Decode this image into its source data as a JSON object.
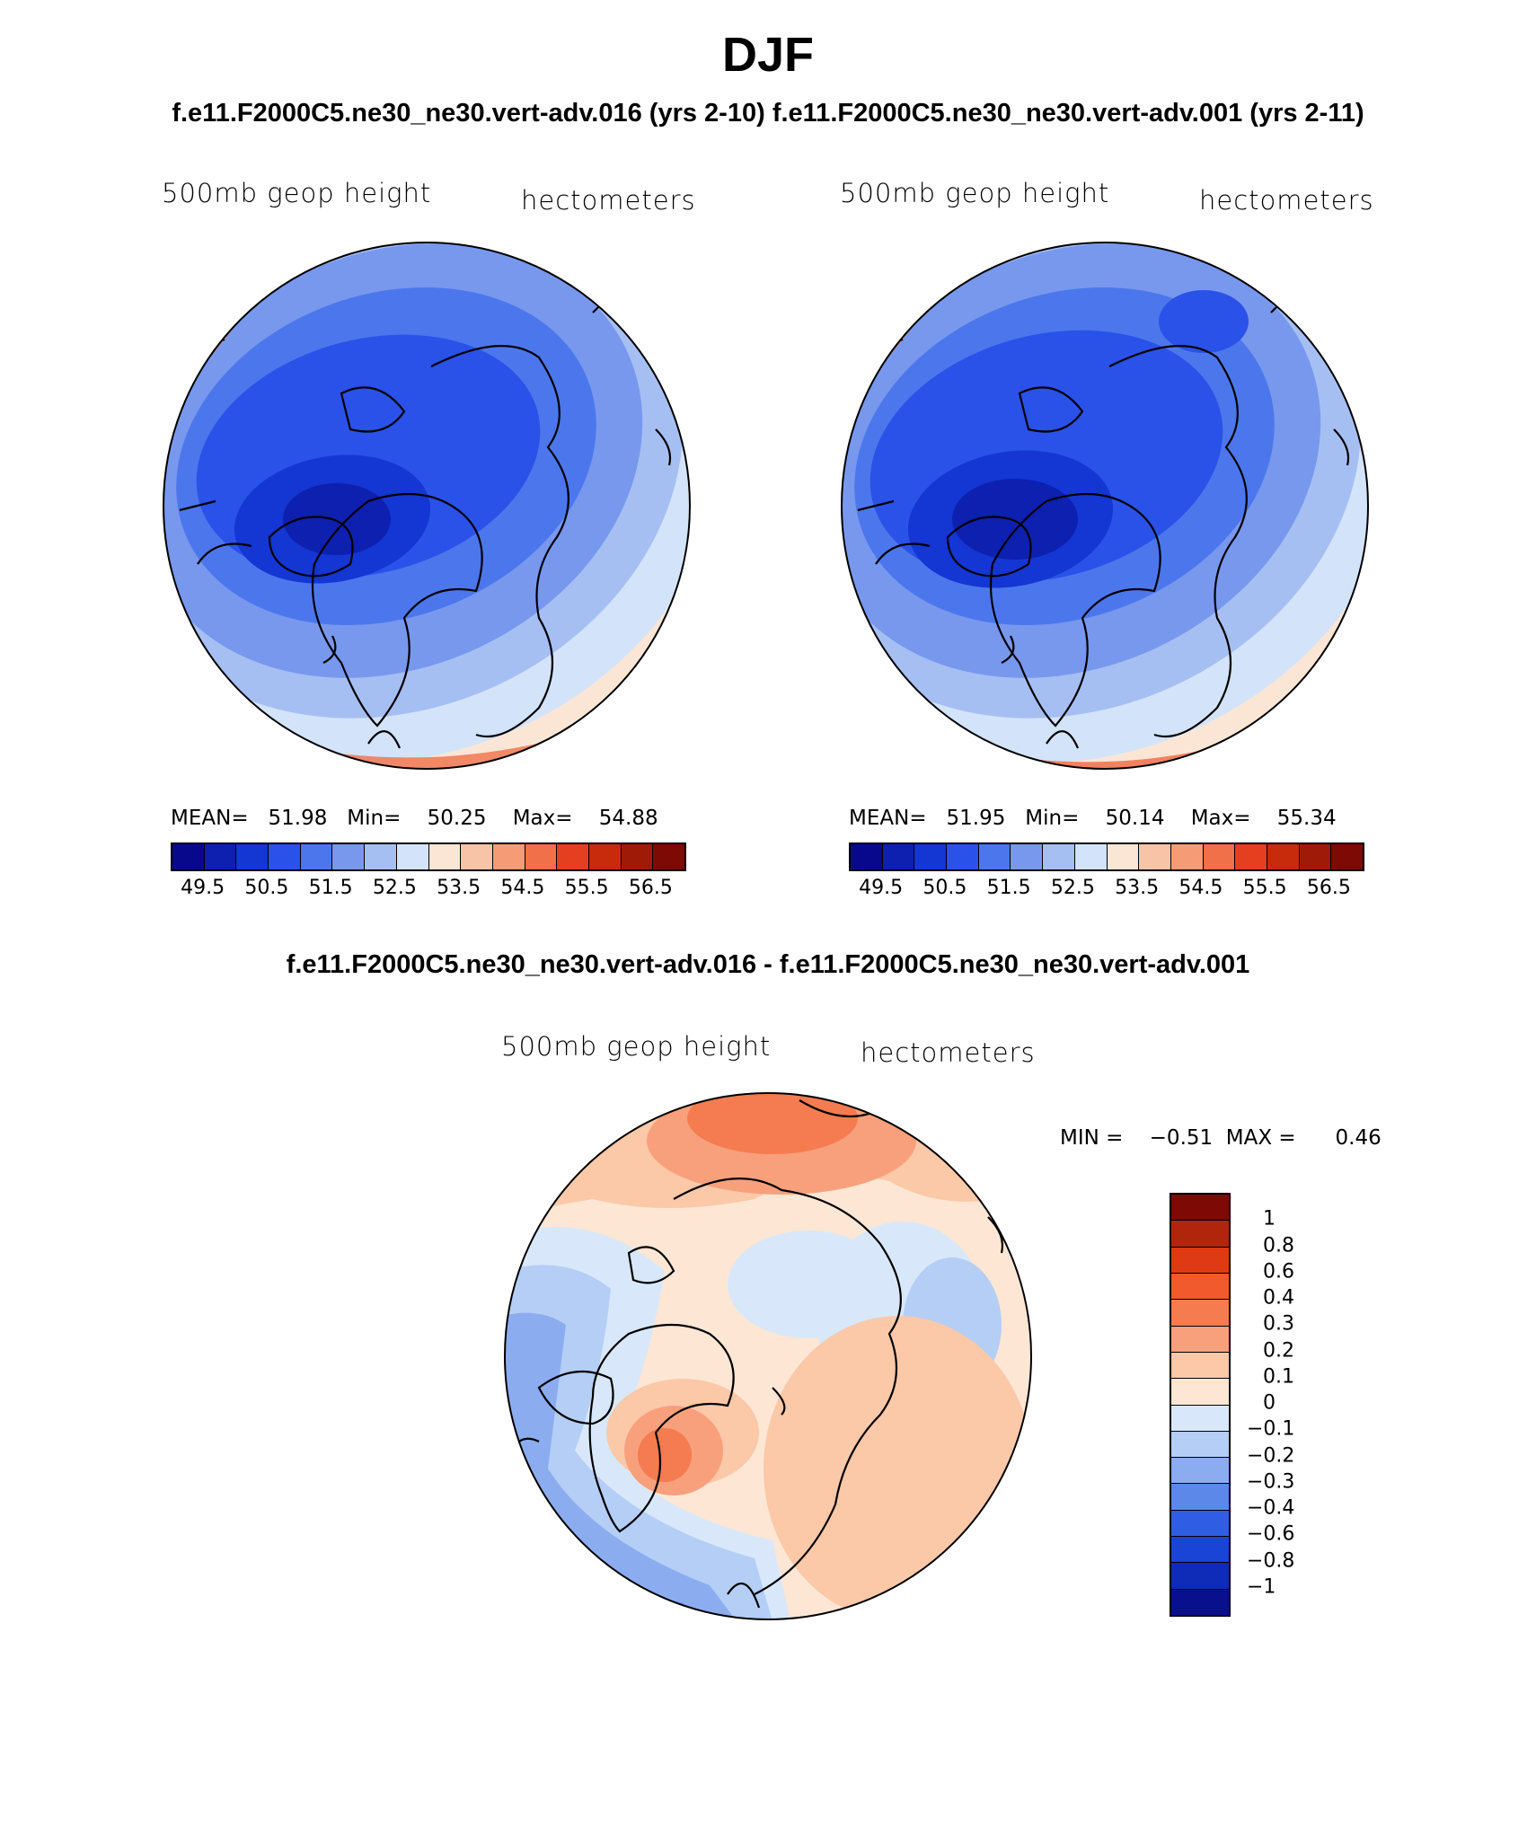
{
  "title": "DJF",
  "subtitle": "f.e11.F2000C5.ne30_ne30.vert-adv.016 (yrs 2-10)  f.e11.F2000C5.ne30_ne30.vert-adv.001 (yrs 2-11)",
  "diff_title": "f.e11.F2000C5.ne30_ne30.vert-adv.016 - f.e11.F2000C5.ne30_ne30.vert-adv.001",
  "panels": [
    {
      "left_label": "500mb geop height",
      "right_label": "hectometers",
      "stats": "MEAN=   51.98   Min=    50.25    Max=    54.88"
    },
    {
      "left_label": "500mb geop height",
      "right_label": "hectometers",
      "stats": "MEAN=   51.95   Min=    50.14    Max=    55.34"
    }
  ],
  "diff_panel": {
    "left_label": "500mb geop height",
    "right_label": "hectometers",
    "stats": "MIN =    −0.51  MAX =      0.46"
  },
  "abs_colorbar": {
    "colors": [
      "#08088c",
      "#0d20b0",
      "#1436d2",
      "#2a52e8",
      "#4c77ec",
      "#7898ee",
      "#a6bff3",
      "#d3e3fa",
      "#fbe6d6",
      "#f8c4a8",
      "#f59c76",
      "#f0704a",
      "#e44020",
      "#c82a0c",
      "#a01a08",
      "#7e0a06"
    ],
    "tick_labels": [
      "49.5",
      "50.5",
      "51.5",
      "52.5",
      "53.5",
      "54.5",
      "55.5",
      "56.5"
    ]
  },
  "diff_colorbar": {
    "colors": [
      "#7e0a06",
      "#b0260c",
      "#e03a14",
      "#f05a2c",
      "#f47c50",
      "#f8a07c",
      "#fbc8a8",
      "#fde6d4",
      "#d8e8fa",
      "#b4cef6",
      "#8cacf0",
      "#5c88ea",
      "#2f5ee4",
      "#1a44d6",
      "#0e2cb8",
      "#08108e"
    ],
    "tick_labels": [
      "1",
      "0.8",
      "0.6",
      "0.4",
      "0.3",
      "0.2",
      "0.1",
      "0",
      "−0.1",
      "−0.2",
      "−0.3",
      "−0.4",
      "−0.6",
      "−0.8",
      "−1"
    ]
  }
}
